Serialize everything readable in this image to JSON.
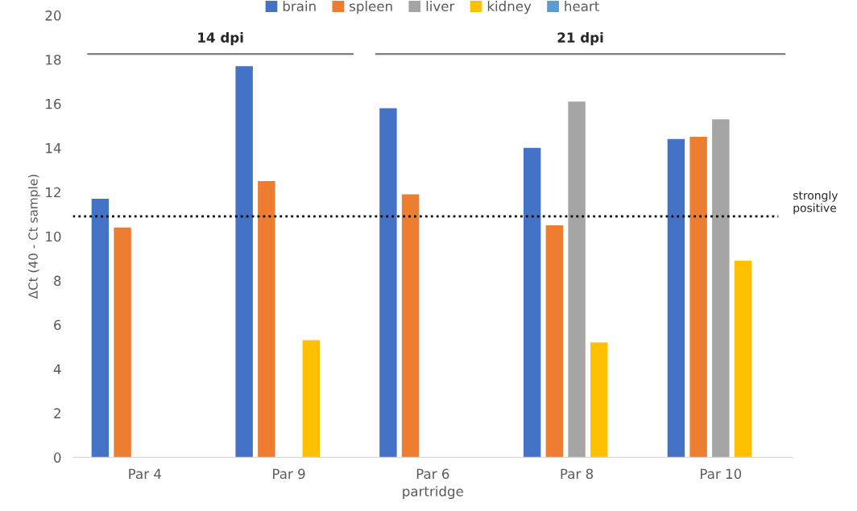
{
  "chart_data": {
    "type": "bar",
    "xlabel": "partridge",
    "ylabel": "ΔCt (40 - Ct sample)",
    "categories": [
      "Par 4",
      "Par 9",
      "Par 6",
      "Par 8",
      "Par 10"
    ],
    "series": [
      {
        "name": "brain",
        "color": "#4472c4",
        "values": [
          11.7,
          17.7,
          15.8,
          14.0,
          14.4
        ]
      },
      {
        "name": "spleen",
        "color": "#ed7d31",
        "values": [
          10.4,
          12.5,
          11.9,
          10.5,
          14.5
        ]
      },
      {
        "name": "liver",
        "color": "#a5a5a5",
        "values": [
          null,
          null,
          null,
          16.1,
          15.3
        ]
      },
      {
        "name": "kidney",
        "color": "#ffc000",
        "values": [
          null,
          5.3,
          null,
          5.2,
          8.9
        ]
      },
      {
        "name": "heart",
        "color": "#5b9bd5",
        "values": [
          null,
          null,
          null,
          null,
          null
        ]
      }
    ],
    "ylim": [
      0,
      20
    ],
    "yticks": [
      0,
      2,
      4,
      6,
      8,
      10,
      12,
      14,
      16,
      18,
      20
    ],
    "ref_lines": [
      {
        "axis": "y",
        "value": 10.9,
        "label": "strongly\npositive",
        "color": "#000000",
        "line_style": "dotted"
      }
    ],
    "annotations": [
      "14 dpi",
      "21 dpi"
    ],
    "grid": false,
    "legend": "top"
  }
}
